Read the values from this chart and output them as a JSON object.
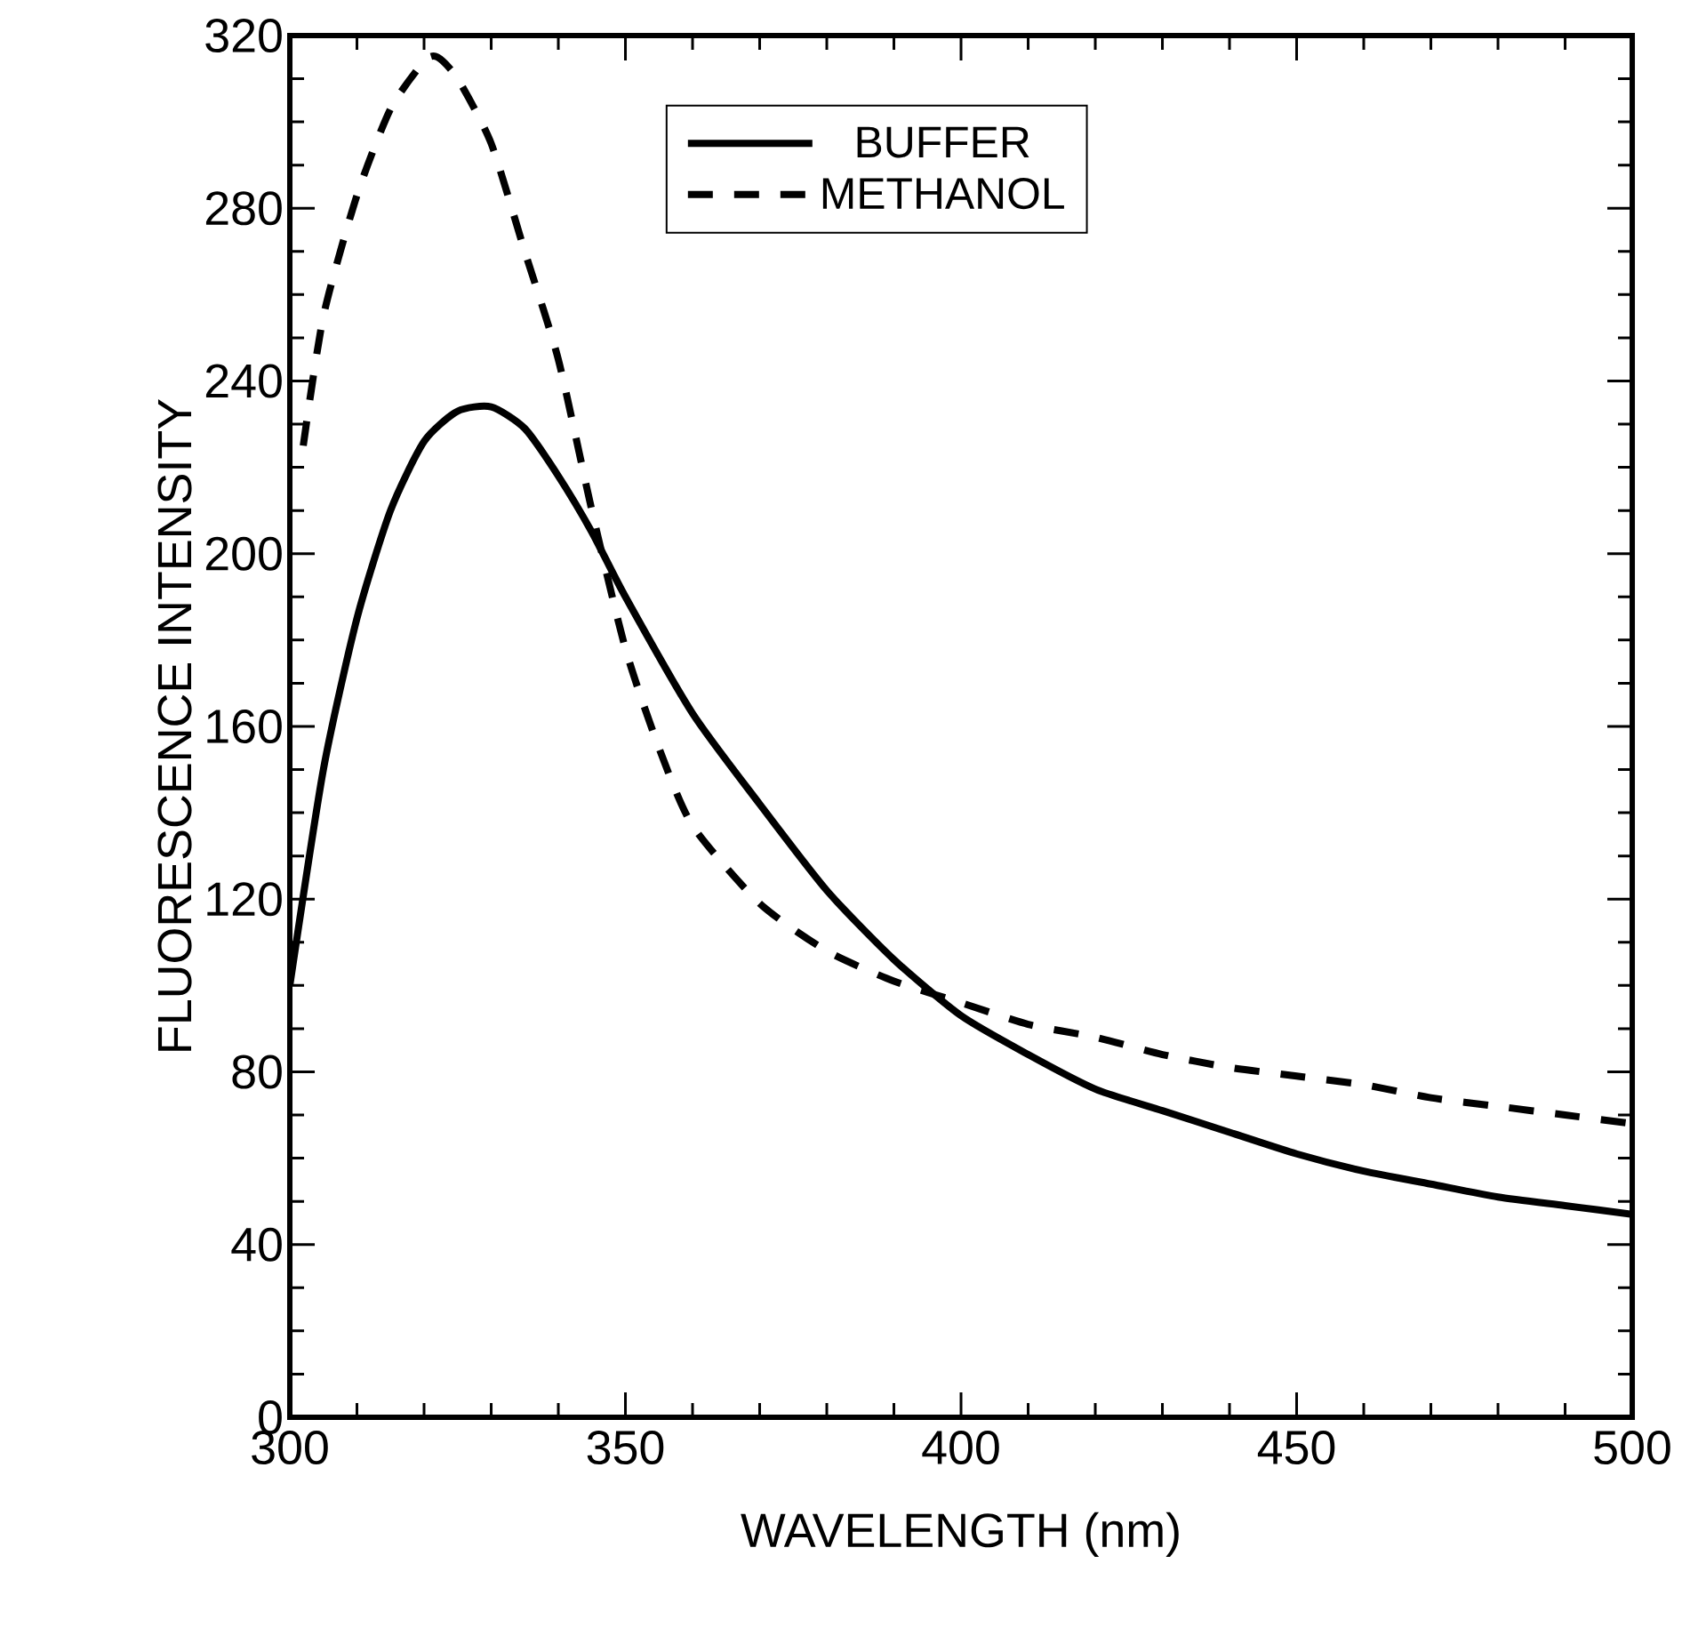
{
  "chart_data": {
    "type": "line",
    "xlabel": "WAVELENGTH (nm)",
    "ylabel": "FLUORESCENCE INTENSITY",
    "xlim": [
      300,
      500
    ],
    "xticks": [
      300,
      350,
      400,
      450,
      500
    ],
    "ylim": [
      0,
      320
    ],
    "yticks": [
      0,
      40,
      80,
      120,
      160,
      200,
      240,
      280,
      320
    ],
    "legend": "top",
    "grid": false,
    "marker": "none",
    "series": [
      {
        "name": "BUFFER",
        "color": "#000000",
        "line_style": "solid",
        "x": [
          300,
          305,
          310,
          315,
          320,
          325,
          330,
          335,
          340,
          345,
          350,
          360,
          370,
          380,
          390,
          400,
          410,
          420,
          430,
          440,
          450,
          460,
          470,
          480,
          490,
          500
        ],
        "values": [
          100,
          150,
          185,
          210,
          226,
          233,
          234,
          229,
          218,
          205,
          190,
          163,
          142,
          122,
          106,
          93,
          84,
          76,
          71,
          66,
          61,
          57,
          54,
          51,
          49,
          47
        ]
      },
      {
        "name": "METHANOL",
        "color": "#000000",
        "line_style": "dashed",
        "x": [
          302,
          305,
          310,
          315,
          320,
          322,
          325,
          330,
          335,
          340,
          345,
          350,
          355,
          360,
          370,
          380,
          390,
          400,
          410,
          420,
          430,
          440,
          450,
          460,
          470,
          480,
          490,
          500
        ],
        "values": [
          225,
          255,
          283,
          303,
          314,
          315,
          310,
          295,
          270,
          245,
          210,
          178,
          155,
          137,
          119,
          108,
          101,
          96,
          91,
          88,
          84,
          81,
          79,
          77,
          74,
          72,
          70,
          68
        ]
      }
    ]
  }
}
